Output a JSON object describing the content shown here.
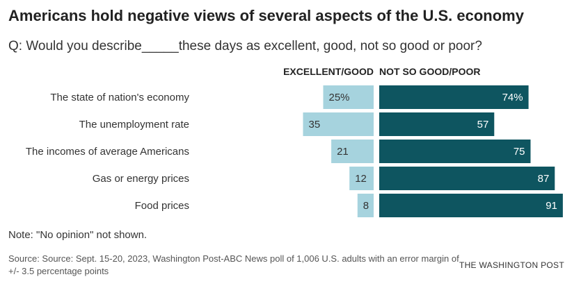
{
  "title": "Americans hold negative views of several aspects of the U.S. economy",
  "subtitle": "Q: Would you describe_____these days as excellent, good, not so good or poor?",
  "note": "Note: \"No opinion\" not shown.",
  "source": "Source: Source: Sept. 15-20, 2023, Washington Post-ABC News poll of 1,006 U.S. adults with an error margin of +/- 3.5 percentage points",
  "logo": "THE WASHINGTON POST",
  "colors": {
    "positive": "#a6d3de",
    "negative": "#0e5560",
    "positive_text": "#333333",
    "negative_text": "#ffffff"
  },
  "chart_data": {
    "type": "bar",
    "orientation": "horizontal-diverging",
    "categories": [
      "The state of nation's economy",
      "The unemployment rate",
      "The incomes of average Americans",
      "Gas or energy prices",
      "Food prices"
    ],
    "series": [
      {
        "name": "EXCELLENT/GOOD",
        "values": [
          25,
          35,
          21,
          12,
          8
        ],
        "labels": [
          "25%",
          "35",
          "21",
          "12",
          "8"
        ]
      },
      {
        "name": "NOT SO GOOD/POOR",
        "values": [
          74,
          57,
          75,
          87,
          91
        ],
        "labels": [
          "74%",
          "57",
          "75",
          "87",
          "91"
        ]
      }
    ],
    "unit": "%",
    "grid": false,
    "legend": "top"
  }
}
